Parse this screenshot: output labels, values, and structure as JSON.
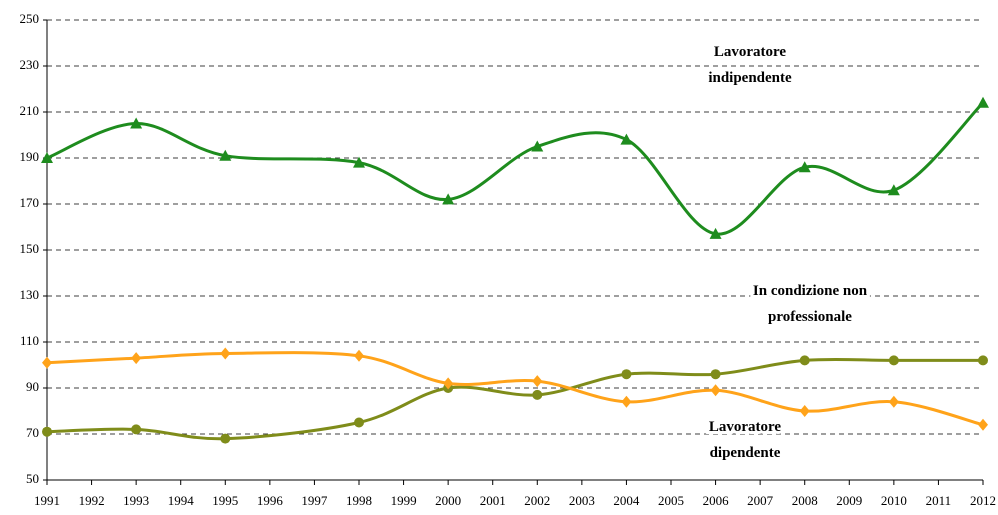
{
  "chart_data": {
    "type": "line",
    "x": [
      1991,
      1993,
      1995,
      1998,
      2000,
      2002,
      2004,
      2006,
      2008,
      2010,
      2012
    ],
    "series": [
      {
        "name": "Lavoratore indipendente",
        "color": "#1e8c1e",
        "marker": "triangle",
        "values": [
          190,
          205,
          191,
          188,
          172,
          195,
          198,
          157,
          186,
          176,
          214
        ]
      },
      {
        "name": "In condizione non professionale",
        "color": "#7f8c1a",
        "marker": "circle",
        "values": [
          71,
          72,
          68,
          75,
          90,
          87,
          96,
          96,
          102,
          102,
          102
        ]
      },
      {
        "name": "Lavoratore dipendente",
        "color": "#ffa31a",
        "marker": "diamond",
        "values": [
          101,
          103,
          105,
          104,
          92,
          93,
          84,
          89,
          80,
          84,
          74
        ]
      }
    ],
    "xlim": [
      1991,
      2012
    ],
    "xticks": [
      1991,
      1992,
      1993,
      1994,
      1995,
      1996,
      1997,
      1998,
      1999,
      2000,
      2001,
      2002,
      2003,
      2004,
      2005,
      2006,
      2007,
      2008,
      2009,
      2010,
      2011,
      2012
    ],
    "ylim": [
      50,
      250
    ],
    "yticks": [
      50,
      70,
      90,
      110,
      130,
      150,
      170,
      190,
      210,
      230,
      250
    ],
    "grid": true
  }
}
